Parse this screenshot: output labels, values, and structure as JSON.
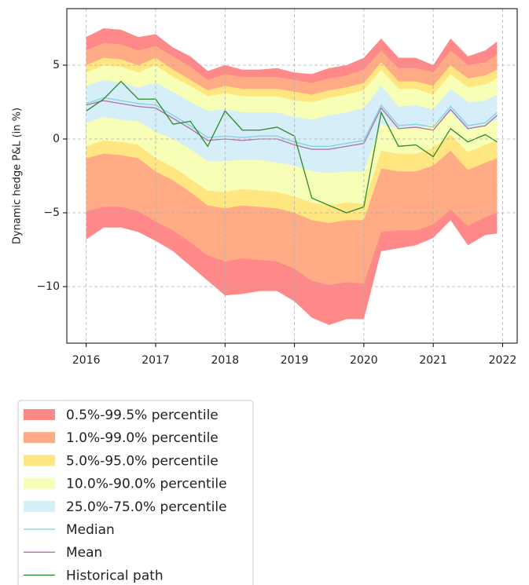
{
  "chart_data": {
    "type": "fan",
    "ylabel": "Dynamic hedge P&L (in %)",
    "x": [
      2016,
      2016.25,
      2016.5,
      2016.75,
      2017,
      2017.25,
      2017.5,
      2017.75,
      2018,
      2018.25,
      2018.5,
      2018.75,
      2019,
      2019.25,
      2019.5,
      2019.75,
      2020,
      2020.25,
      2020.5,
      2020.75,
      2021,
      2021.25,
      2021.5,
      2021.75,
      2021.92
    ],
    "xlim": [
      2015.72,
      2022.21
    ],
    "xticks": [
      2016,
      2017,
      2018,
      2019,
      2020,
      2021,
      2022
    ],
    "ylim": [
      -13.83,
      8.83
    ],
    "yticks": [
      {
        "value": -10,
        "label": "−10"
      },
      {
        "value": -5,
        "label": "−5"
      },
      0,
      5
    ],
    "grid": true,
    "legend": "below",
    "series": [
      {
        "name": "0.5%-99.5% percentile",
        "color": "#ff8888",
        "lower": [
          -6.8,
          -6.0,
          -6.0,
          -6.3,
          -6.9,
          -7.6,
          -8.6,
          -9.6,
          -10.6,
          -10.5,
          -10.3,
          -10.3,
          -11.0,
          -12.1,
          -12.6,
          -12.2,
          -12.2,
          -7.6,
          -7.4,
          -7.2,
          -6.7,
          -5.5,
          -7.2,
          -6.5,
          -6.4
        ],
        "upper": [
          6.9,
          7.5,
          7.4,
          6.9,
          7.1,
          6.2,
          5.6,
          4.6,
          5.0,
          4.7,
          4.7,
          4.8,
          4.5,
          4.4,
          4.8,
          5.0,
          5.5,
          6.8,
          5.5,
          5.5,
          5.0,
          6.8,
          5.6,
          6.0,
          6.6
        ]
      },
      {
        "name": "1.0%-99.0% percentile",
        "color": "#ffab85",
        "lower": [
          -4.9,
          -4.6,
          -4.6,
          -4.9,
          -5.6,
          -6.2,
          -7.0,
          -7.9,
          -8.3,
          -8.1,
          -8.2,
          -8.3,
          -8.8,
          -9.6,
          -9.9,
          -9.7,
          -9.8,
          -6.3,
          -6.2,
          -6.2,
          -5.8,
          -4.8,
          -5.9,
          -5.3,
          -5.0
        ],
        "upper": [
          6.0,
          6.5,
          6.4,
          6.0,
          6.3,
          5.6,
          4.9,
          4.0,
          4.4,
          4.2,
          4.2,
          4.2,
          4.0,
          3.8,
          4.1,
          4.3,
          4.7,
          6.0,
          4.8,
          4.8,
          4.5,
          6.0,
          5.0,
          5.2,
          5.7
        ]
      },
      {
        "name": "5.0%-95.0% percentile",
        "color": "#ffe680",
        "lower": [
          -1.3,
          -1.0,
          -1.1,
          -1.3,
          -2.2,
          -2.8,
          -3.6,
          -4.5,
          -4.7,
          -4.5,
          -4.6,
          -4.7,
          -5.0,
          -5.5,
          -5.7,
          -5.5,
          -5.5,
          -2.0,
          -2.2,
          -2.2,
          -1.8,
          -0.8,
          -2.1,
          -1.6,
          -1.3
        ],
        "upper": [
          5.0,
          5.5,
          5.4,
          5.0,
          5.5,
          4.7,
          4.0,
          3.3,
          3.6,
          3.4,
          3.4,
          3.4,
          3.2,
          3.0,
          3.3,
          3.5,
          3.8,
          5.2,
          3.9,
          3.9,
          3.6,
          5.0,
          4.1,
          4.3,
          4.7
        ]
      },
      {
        "name": "10.0%-90.0% percentile",
        "color": "#f6ffb5",
        "lower": [
          -0.5,
          -0.1,
          -0.2,
          -0.4,
          -1.3,
          -1.9,
          -2.7,
          -3.5,
          -3.6,
          -3.4,
          -3.5,
          -3.6,
          -3.9,
          -4.3,
          -4.5,
          -4.3,
          -4.4,
          -0.8,
          -1.0,
          -1.0,
          -0.6,
          0.3,
          -0.9,
          -0.4,
          -0.1
        ],
        "upper": [
          4.5,
          5.0,
          4.9,
          4.5,
          5.0,
          4.2,
          3.6,
          2.9,
          3.1,
          2.9,
          2.9,
          2.9,
          2.6,
          2.5,
          2.8,
          3.0,
          3.3,
          4.7,
          3.4,
          3.4,
          3.0,
          4.4,
          3.5,
          3.7,
          4.1
        ]
      },
      {
        "name": "25.0%-75.0% percentile",
        "color": "#d6eef8",
        "lower": [
          1.1,
          1.5,
          1.3,
          1.2,
          0.5,
          0.0,
          -0.7,
          -1.5,
          -1.5,
          -1.4,
          -1.4,
          -1.6,
          -1.8,
          -2.2,
          -2.3,
          -2.2,
          -2.2,
          1.0,
          0.7,
          0.7,
          1.0,
          1.8,
          0.6,
          1.0,
          1.3
        ],
        "upper": [
          3.6,
          4.0,
          3.8,
          3.5,
          3.8,
          3.2,
          2.5,
          1.9,
          2.0,
          1.8,
          1.8,
          1.8,
          1.5,
          1.3,
          1.6,
          1.8,
          2.1,
          3.6,
          2.2,
          2.3,
          2.0,
          3.4,
          2.5,
          2.6,
          3.0
        ]
      },
      {
        "name": "Median",
        "color": "#7fd0e2",
        "values": [
          2.4,
          2.8,
          2.6,
          2.4,
          2.3,
          1.6,
          0.9,
          0.1,
          0.2,
          0.1,
          0.2,
          0.2,
          -0.2,
          -0.5,
          -0.5,
          -0.3,
          -0.1,
          2.3,
          0.9,
          1.0,
          0.8,
          2.2,
          0.9,
          1.1,
          1.8
        ]
      },
      {
        "name": "Mean",
        "color": "#b06ea6",
        "values": [
          2.3,
          2.6,
          2.4,
          2.2,
          2.1,
          1.4,
          0.7,
          -0.1,
          0.0,
          -0.1,
          0.0,
          0.0,
          -0.4,
          -0.7,
          -0.7,
          -0.5,
          -0.3,
          2.1,
          0.7,
          0.8,
          0.6,
          2.0,
          0.7,
          0.9,
          1.6
        ]
      },
      {
        "name": "Historical path",
        "color": "#2a8a2a",
        "values": [
          1.9,
          2.7,
          3.9,
          2.7,
          2.7,
          1.0,
          1.2,
          -0.5,
          1.9,
          0.6,
          0.6,
          0.8,
          0.2,
          -4.0,
          -4.5,
          -5.0,
          -4.6,
          1.8,
          -0.5,
          -0.4,
          -1.2,
          0.7,
          -0.2,
          0.3,
          -0.2
        ]
      }
    ]
  }
}
